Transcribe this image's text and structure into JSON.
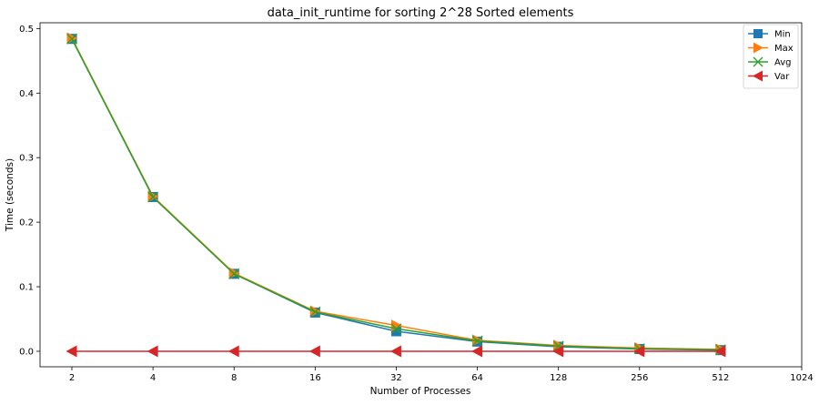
{
  "chart_data": {
    "type": "line",
    "title": "data_init_runtime for sorting 2^28 Sorted elements",
    "xlabel": "Number of Processes",
    "ylabel": "Time (seconds)",
    "x": [
      2,
      4,
      8,
      16,
      32,
      64,
      128,
      256,
      512
    ],
    "x_scale": "log2",
    "x_ticks": [
      2,
      4,
      8,
      16,
      32,
      64,
      128,
      256,
      512,
      1024
    ],
    "x_tick_labels": [
      "2",
      "4",
      "8",
      "16",
      "32",
      "64",
      "128",
      "256",
      "512",
      "1024"
    ],
    "y_ticks": [
      0.0,
      0.1,
      0.2,
      0.3,
      0.4,
      0.5
    ],
    "y_tick_labels": [
      "0.0",
      "0.1",
      "0.2",
      "0.3",
      "0.4",
      "0.5"
    ],
    "ylim": [
      -0.024,
      0.509
    ],
    "grid": false,
    "legend_position": "top-right",
    "series": [
      {
        "name": "Min",
        "color": "#1f77b4",
        "marker": "square",
        "values": [
          0.484,
          0.239,
          0.12,
          0.06,
          0.031,
          0.015,
          0.007,
          0.0035,
          0.0018
        ]
      },
      {
        "name": "Max",
        "color": "#ff7f0e",
        "marker": "triangle-right",
        "values": [
          0.485,
          0.24,
          0.121,
          0.062,
          0.04,
          0.017,
          0.009,
          0.005,
          0.003
        ]
      },
      {
        "name": "Avg",
        "color": "#2ca02c",
        "marker": "x",
        "values": [
          0.484,
          0.239,
          0.12,
          0.061,
          0.035,
          0.016,
          0.008,
          0.004,
          0.0025
        ]
      },
      {
        "name": "Var",
        "color": "#d62728",
        "marker": "triangle-left",
        "values": [
          0.0,
          0.0,
          0.0,
          0.0,
          0.0,
          0.0,
          0.0,
          0.0,
          0.0
        ]
      }
    ]
  }
}
